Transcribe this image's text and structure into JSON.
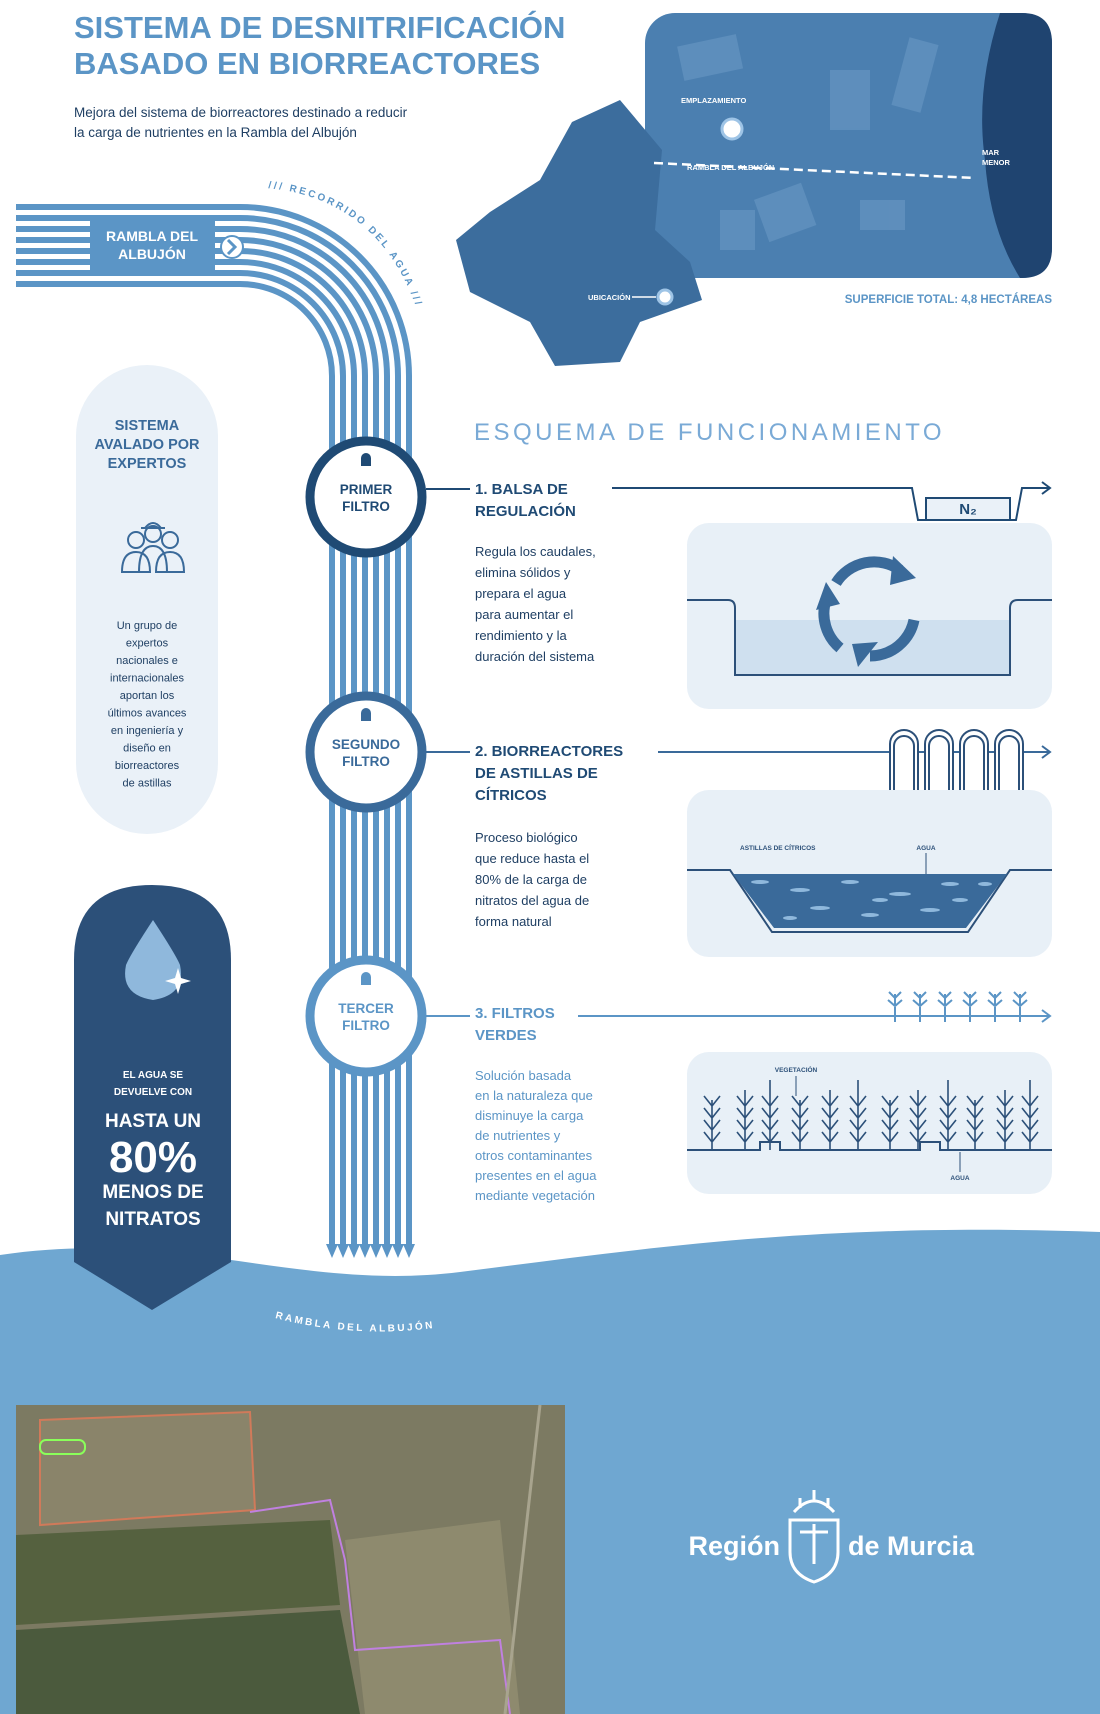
{
  "header": {
    "title": [
      "SISTEMA DE DESNITRIFICACIÓN",
      "BASADO EN BIORREACTORES"
    ],
    "subtitle": [
      "Mejora del sistema de biorreactores destinado a reducir",
      "la carga de nutrientes en la Rambla del Albujón"
    ]
  },
  "map": {
    "site": "EMPLAZAMIENTO",
    "stream": "RAMBLA DEL ALBUJÓN",
    "sea": [
      "MAR",
      "MENOR"
    ],
    "location": "UBICACIÓN",
    "area": "SUPERFICIE TOTAL: 4,8 HECTÁREAS"
  },
  "flow": {
    "inlet": [
      "RAMBLA DEL",
      "ALBUJÓN"
    ],
    "path_label": "/// RECORRIDO DEL AGUA ///",
    "filters": [
      [
        "PRIMER",
        "FILTRO"
      ],
      [
        "SEGUNDO",
        "FILTRO"
      ],
      [
        "TERCER",
        "FILTRO"
      ]
    ],
    "outlet": "RAMBLA DEL ALBUJÓN"
  },
  "experts": {
    "title": [
      "SISTEMA",
      "AVALADO POR",
      "EXPERTOS"
    ],
    "description": [
      "Un grupo de",
      "expertos",
      "nacionales e",
      "internacionales",
      "aportan los",
      "últimos avances",
      "en ingeniería y",
      "diseño en",
      "biorreactores",
      "de astillas"
    ]
  },
  "callout": {
    "intro": [
      "EL AGUA SE",
      "DEVUELVE CON"
    ],
    "lead": "HASTA UN",
    "figure": "80%",
    "tail": [
      "MENOS DE",
      "NITRATOS"
    ]
  },
  "scheme": {
    "title": "ESQUEMA DE FUNCIONAMIENTO",
    "steps": [
      {
        "title": [
          "1.  BALSA DE",
          "REGULACIÓN"
        ],
        "description": [
          "Regula los caudales,",
          "elimina sólidos y",
          "prepara el agua",
          "para aumentar el",
          "rendimiento y la",
          "duración del sistema"
        ],
        "labels": [
          "N₂"
        ]
      },
      {
        "title": [
          "2. BIORREACTORES",
          "DE ASTILLAS DE",
          "CÍTRICOS"
        ],
        "description": [
          "Proceso biológico",
          "que reduce hasta el",
          "80% de la carga de",
          "nitratos del agua de",
          "forma natural"
        ],
        "labels": [
          "ASTILLAS DE CÍTRICOS",
          "AGUA"
        ]
      },
      {
        "title": [
          "3. FILTROS",
          "VERDES"
        ],
        "description": [
          "Solución basada",
          "en la naturaleza que",
          "disminuye la carga",
          "de nutrientes y",
          "otros contaminantes",
          "presentes en el agua",
          "mediante vegetación"
        ],
        "labels": [
          "VEGETACIÓN",
          "AGUA"
        ]
      }
    ]
  },
  "footer": {
    "logo": [
      "Región",
      "de Murcia"
    ]
  }
}
